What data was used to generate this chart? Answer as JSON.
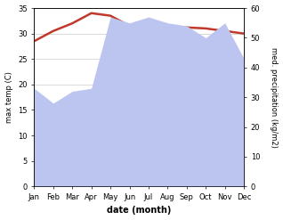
{
  "months": [
    "Jan",
    "Feb",
    "Mar",
    "Apr",
    "May",
    "Jun",
    "Jul",
    "Aug",
    "Sep",
    "Oct",
    "Nov",
    "Dec"
  ],
  "month_indices": [
    0,
    1,
    2,
    3,
    4,
    5,
    6,
    7,
    8,
    9,
    10,
    11
  ],
  "temp_max": [
    28.5,
    30.5,
    32.0,
    34.0,
    33.5,
    31.5,
    31.0,
    31.2,
    31.2,
    31.0,
    30.5,
    30.0
  ],
  "precipitation": [
    33,
    28,
    32,
    33,
    57,
    55,
    57,
    55,
    54,
    50,
    55,
    43
  ],
  "temp_ylim": [
    0,
    35
  ],
  "precip_ylim": [
    0,
    60
  ],
  "temp_color": "#c0392b",
  "precip_fill_color": "#bcc5f0",
  "xlabel": "date (month)",
  "ylabel_left": "max temp (C)",
  "ylabel_right": "med. precipitation (kg/m2)",
  "bg_color": "#ffffff",
  "temp_linewidth": 1.8
}
